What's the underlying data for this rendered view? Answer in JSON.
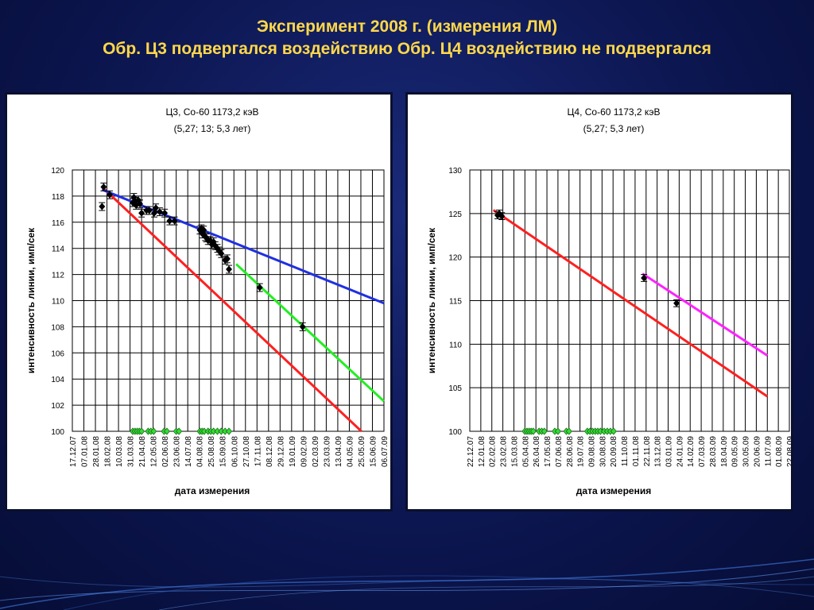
{
  "slide": {
    "title_line1": "Эксперимент 2008 г. (измерения ЛМ)",
    "title_line2": "Обр. Ц3 подвергался воздействию   Обр. Ц4 воздействию не подвергался",
    "title_color": "#ffd84a",
    "background_color": "#0c1650"
  },
  "chart_data": [
    {
      "type": "scatter",
      "title": "Ц3, Co-60 1173,2 кэВ",
      "subtitle": "(5,27; 13; 5,3 лет)",
      "xlabel": "дата измерения",
      "ylabel": "интенсивность линии, имп/сек",
      "ylim": [
        100,
        120
      ],
      "yticks": [
        100,
        102,
        104,
        106,
        108,
        110,
        112,
        114,
        116,
        118,
        120
      ],
      "x_ticks": [
        "17.12.07",
        "07.01.08",
        "28.01.08",
        "18.02.08",
        "10.03.08",
        "31.03.08",
        "21.04.08",
        "12.05.08",
        "02.06.08",
        "23.06.08",
        "14.07.08",
        "04.08.08",
        "25.08.08",
        "15.09.08",
        "06.10.08",
        "27.10.08",
        "17.11.08",
        "08.12.08",
        "29.12.08",
        "19.01.09",
        "09.02.09",
        "02.03.09",
        "23.03.09",
        "13.04.09",
        "04.05.09",
        "25.05.09",
        "15.06.09",
        "06.07.09"
      ],
      "xlim": [
        "17.12.07",
        "06.07.09"
      ],
      "grid": true,
      "legend": "none",
      "series": [
        {
          "marker": "diamond",
          "color": "#000000",
          "points": [
            {
              "x": "09.02.08",
              "y": 117.2,
              "err": 0.3
            },
            {
              "x": "12.02.08",
              "y": 118.7,
              "err": 0.3
            },
            {
              "x": "23.02.08",
              "y": 118.1,
              "err": 0.3
            },
            {
              "x": "05.04.08",
              "y": 117.5,
              "err": 0.3
            },
            {
              "x": "07.04.08",
              "y": 117.9,
              "err": 0.3
            },
            {
              "x": "09.04.08",
              "y": 117.6,
              "err": 0.3
            },
            {
              "x": "11.04.08",
              "y": 117.3,
              "err": 0.3
            },
            {
              "x": "15.04.08",
              "y": 117.7,
              "err": 0.3
            },
            {
              "x": "18.04.08",
              "y": 117.4,
              "err": 0.3
            },
            {
              "x": "21.04.08",
              "y": 116.7,
              "err": 0.3
            },
            {
              "x": "30.04.08",
              "y": 116.9,
              "err": 0.3
            },
            {
              "x": "05.05.08",
              "y": 116.9,
              "err": 0.3
            },
            {
              "x": "14.05.08",
              "y": 116.7,
              "err": 0.3
            },
            {
              "x": "17.05.08",
              "y": 117.1,
              "err": 0.3
            },
            {
              "x": "24.05.08",
              "y": 116.8,
              "err": 0.3
            },
            {
              "x": "02.06.08",
              "y": 116.7,
              "err": 0.3
            },
            {
              "x": "11.06.08",
              "y": 116.1,
              "err": 0.3
            },
            {
              "x": "20.06.08",
              "y": 116.1,
              "err": 0.3
            },
            {
              "x": "05.08.08",
              "y": 115.4,
              "err": 0.3
            },
            {
              "x": "08.08.08",
              "y": 115.5,
              "err": 0.3
            },
            {
              "x": "10.08.08",
              "y": 115.1,
              "err": 0.3
            },
            {
              "x": "12.08.08",
              "y": 115.4,
              "err": 0.3
            },
            {
              "x": "15.08.08",
              "y": 114.9,
              "err": 0.3
            },
            {
              "x": "17.08.08",
              "y": 114.8,
              "err": 0.3
            },
            {
              "x": "20.08.08",
              "y": 114.6,
              "err": 0.3
            },
            {
              "x": "24.08.08",
              "y": 114.6,
              "err": 0.3
            },
            {
              "x": "27.08.08",
              "y": 114.3,
              "err": 0.3
            },
            {
              "x": "30.08.08",
              "y": 114.5,
              "err": 0.3
            },
            {
              "x": "02.09.08",
              "y": 114.2,
              "err": 0.3
            },
            {
              "x": "06.09.08",
              "y": 114.0,
              "err": 0.3
            },
            {
              "x": "09.09.08",
              "y": 113.8,
              "err": 0.3
            },
            {
              "x": "13.09.08",
              "y": 113.6,
              "err": 0.3
            },
            {
              "x": "20.09.08",
              "y": 113.1,
              "err": 0.3
            },
            {
              "x": "24.09.08",
              "y": 113.2,
              "err": 0.3
            },
            {
              "x": "27.09.08",
              "y": 112.4,
              "err": 0.3
            },
            {
              "x": "22.11.08",
              "y": 111.0,
              "err": 0.3
            },
            {
              "x": "08.02.09",
              "y": 108.0,
              "err": 0.3
            }
          ]
        },
        {
          "marker": "diamond-green",
          "color": "#33dd33",
          "y_constant": 100,
          "x": [
            "05.04.08",
            "09.04.08",
            "13.04.08",
            "17.04.08",
            "21.04.08",
            "03.05.08",
            "08.05.08",
            "13.05.08",
            "01.06.08",
            "06.06.08",
            "23.06.08",
            "28.06.08",
            "05.08.08",
            "09.08.08",
            "13.08.08",
            "20.08.08",
            "25.08.08",
            "30.08.08",
            "06.09.08",
            "13.09.08",
            "20.09.08",
            "27.09.08"
          ]
        }
      ],
      "lines": [
        {
          "color": "#ff2020",
          "x": [
            "09.02.08",
            "26.05.09"
          ],
          "y": [
            118.7,
            100.0
          ]
        },
        {
          "color": "#2030e0",
          "x": [
            "09.02.08",
            "06.07.09"
          ],
          "y": [
            118.5,
            109.8
          ]
        },
        {
          "color": "#22ee22",
          "x": [
            "10.10.08",
            "06.07.09"
          ],
          "y": [
            112.8,
            102.3
          ]
        }
      ]
    },
    {
      "type": "scatter",
      "title": "Ц4, Co-60 1173,2 кэВ",
      "subtitle": "(5,27; 5,3 лет)",
      "xlabel": "дата измерения",
      "ylabel": "интенсивность линии, имп/сек",
      "ylim": [
        100,
        130
      ],
      "yticks": [
        100,
        105,
        110,
        115,
        120,
        125,
        130
      ],
      "x_ticks": [
        "22.12.07",
        "12.01.08",
        "02.02.08",
        "23.02.08",
        "15.03.08",
        "05.04.08",
        "26.04.08",
        "17.05.08",
        "07.06.08",
        "28.06.08",
        "19.07.08",
        "09.08.08",
        "30.08.08",
        "20.09.08",
        "11.10.08",
        "01.11.08",
        "22.11.08",
        "13.12.08",
        "03.01.09",
        "24.01.09",
        "14.02.09",
        "07.03.09",
        "28.03.09",
        "18.04.09",
        "09.05.09",
        "30.05.09",
        "20.06.09",
        "11.07.09",
        "01.08.09",
        "22.08.09"
      ],
      "xlim": [
        "22.12.07",
        "22.08.09"
      ],
      "grid": true,
      "legend": "none",
      "series": [
        {
          "marker": "diamond",
          "color": "#000000",
          "points": [
            {
              "x": "13.02.08",
              "y": 124.8,
              "err": 0.4
            },
            {
              "x": "16.02.08",
              "y": 125.0,
              "err": 0.4
            },
            {
              "x": "21.02.08",
              "y": 124.7,
              "err": 0.4
            },
            {
              "x": "18.11.08",
              "y": 117.6,
              "err": 0.4
            },
            {
              "x": "19.01.09",
              "y": 114.7,
              "err": 0.4
            }
          ]
        },
        {
          "marker": "diamond-green",
          "color": "#33dd33",
          "y_constant": 100,
          "x": [
            "05.04.08",
            "09.04.08",
            "13.04.08",
            "17.04.08",
            "21.04.08",
            "02.05.08",
            "07.05.08",
            "12.05.08",
            "01.06.08",
            "07.06.08",
            "23.06.08",
            "28.06.08",
            "02.08.08",
            "07.08.08",
            "12.08.08",
            "17.08.08",
            "22.08.08",
            "27.08.08",
            "03.09.08",
            "09.09.08",
            "15.09.08",
            "21.09.08"
          ]
        }
      ],
      "lines": [
        {
          "color": "#ff2020",
          "x": [
            "05.02.08",
            "11.07.09"
          ],
          "y": [
            125.4,
            104.0
          ]
        },
        {
          "color": "#ff22ff",
          "x": [
            "15.11.08",
            "11.07.09"
          ],
          "y": [
            118.1,
            108.7
          ]
        }
      ]
    }
  ]
}
